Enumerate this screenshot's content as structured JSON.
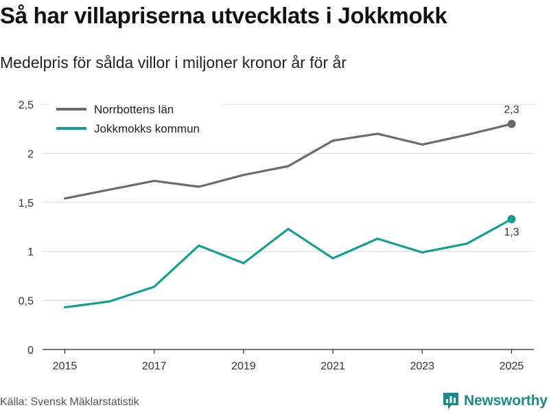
{
  "title": "Så har villapriserna utvecklats i Jokkmokk",
  "subtitle": "Medelpris för sålda villor i miljoner kronor år för år",
  "source": "Källa: Svensk Mäklarstatistik",
  "brand": "Newsworthy",
  "chart_data": {
    "type": "line",
    "title": "Så har villapriserna utvecklats i Jokkmokk",
    "subtitle": "Medelpris för sålda villor i miljoner kronor år för år",
    "x": [
      2015,
      2016,
      2017,
      2018,
      2019,
      2020,
      2021,
      2022,
      2023,
      2024,
      2025
    ],
    "x_ticks": [
      2015,
      2017,
      2019,
      2021,
      2023,
      2025
    ],
    "x_tick_labels": [
      "2015",
      "2017",
      "2019",
      "2021",
      "2023",
      "2025"
    ],
    "y_ticks": [
      0,
      0.5,
      1,
      1.5,
      2,
      2.5
    ],
    "y_tick_labels": [
      "0",
      "0,5",
      "1",
      "1,5",
      "2",
      "2,5"
    ],
    "ylim": [
      0,
      2.5
    ],
    "xlim": [
      2014.5,
      2025.5
    ],
    "grid": true,
    "legend_position": "top-left",
    "series": [
      {
        "name": "Norrbottens län",
        "color": "#6b6a6e",
        "values": [
          1.54,
          1.63,
          1.72,
          1.66,
          1.78,
          1.87,
          2.13,
          2.2,
          2.09,
          2.19,
          2.3
        ],
        "end_label": "2,3",
        "end_label_position": "above"
      },
      {
        "name": "Jokkmokks kommun",
        "color": "#129e94",
        "values": [
          0.43,
          0.49,
          0.64,
          1.06,
          0.88,
          1.23,
          0.93,
          1.13,
          0.99,
          1.08,
          1.33
        ],
        "end_label": "1,3",
        "end_label_position": "below"
      }
    ]
  }
}
